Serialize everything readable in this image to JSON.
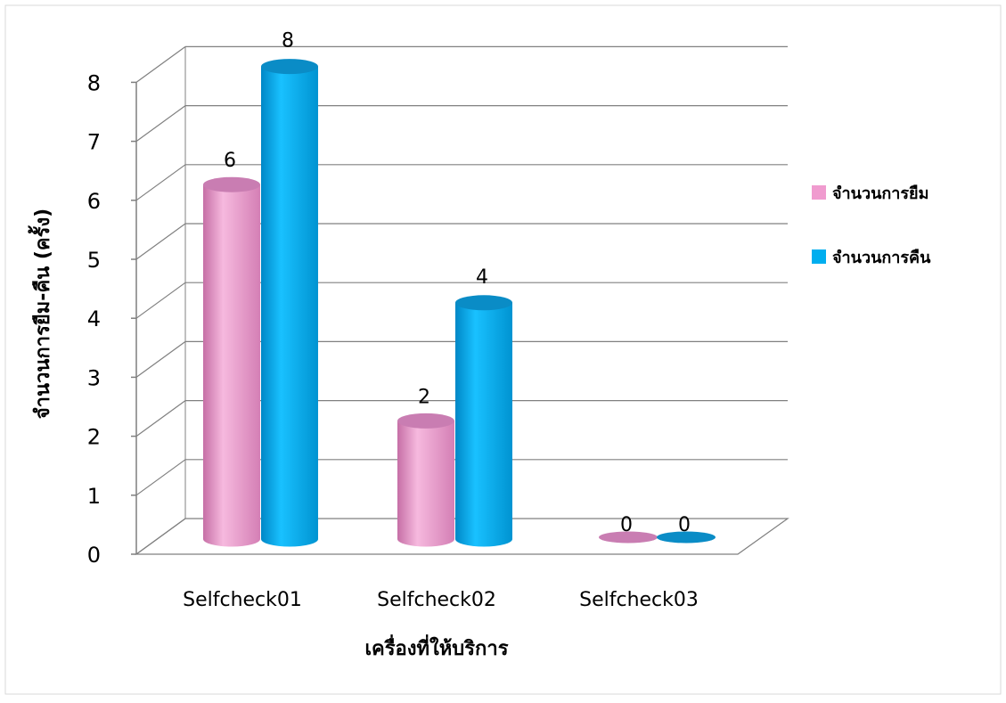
{
  "chart_data": {
    "type": "bar",
    "style": "3d-cylinder",
    "title": "",
    "xlabel": "เครื่องที่ให้บริการ",
    "ylabel": "จำนวนการยืม-คืน (ครั้ง)",
    "ylim": [
      0,
      8
    ],
    "yticks": [
      "0",
      "1",
      "2",
      "3",
      "4",
      "5",
      "6",
      "7",
      "8"
    ],
    "categories": [
      "Selfcheck01",
      "Selfcheck02",
      "Selfcheck03"
    ],
    "series": [
      {
        "name": "จำนวนการยืม",
        "values": [
          6,
          2,
          0
        ],
        "color": "#F09BCF"
      },
      {
        "name": "จำนวนการคืน",
        "values": [
          8,
          4,
          0
        ],
        "color": "#00AEEF"
      }
    ],
    "grid": true,
    "legend": "right",
    "data_labels": true
  }
}
